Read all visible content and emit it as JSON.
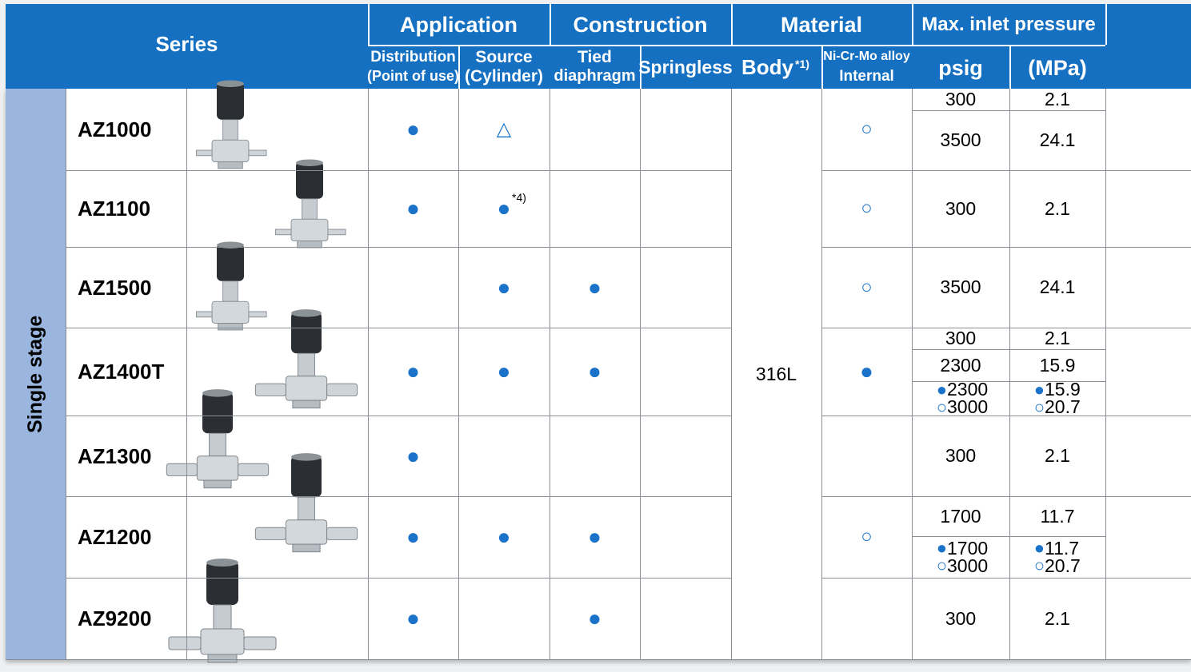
{
  "header": {
    "series": "Series",
    "application": "Application",
    "construction": "Construction",
    "material": "Material",
    "max_inlet_pressure": "Max. inlet pressure",
    "distribution": "Distribution",
    "distribution_note": "(Point of use)",
    "source": "Source",
    "source_note": "(Cylinder)",
    "tied": "Tied",
    "tied_note": "diaphragm",
    "springless": "Springless",
    "body": "Body",
    "body_footnote": "*1)",
    "alloy": "Ni-Cr-Mo alloy",
    "alloy_note": "Internal",
    "psig": "psig",
    "mpa": "(MPa)"
  },
  "group": "Single stage",
  "body_material": "316L",
  "rows": [
    {
      "model": "AZ1000",
      "distribution": "●",
      "source": "△",
      "internal": "○",
      "pressure": [
        {
          "psig": 300,
          "mpa": 2.1
        },
        {
          "psig": 3500,
          "mpa": 24.1
        }
      ]
    },
    {
      "model": "AZ1100",
      "distribution": "●",
      "source": "●",
      "source_footnote": "*4)",
      "internal": "○",
      "pressure": [
        {
          "psig": 300,
          "mpa": 2.1
        }
      ]
    },
    {
      "model": "AZ1500",
      "source": "●",
      "tied": "●",
      "internal": "○",
      "pressure": [
        {
          "psig": 3500,
          "mpa": 24.1
        }
      ]
    },
    {
      "model": "AZ1400T",
      "distribution": "●",
      "source": "●",
      "tied": "●",
      "internal": "●",
      "pressure": [
        {
          "psig": 300,
          "mpa": 2.1
        },
        {
          "psig": 2300,
          "mpa": 15.9
        },
        {
          "psig": [
            {
              "mark": "●",
              "value": 2300
            },
            {
              "mark": "○",
              "value": 3000
            }
          ],
          "mpa": [
            {
              "mark": "●",
              "value": 15.9
            },
            {
              "mark": "○",
              "value": 20.7
            }
          ]
        }
      ]
    },
    {
      "model": "AZ1300",
      "distribution": "●",
      "pressure": [
        {
          "psig": 300,
          "mpa": 2.1
        }
      ]
    },
    {
      "model": "AZ1200",
      "distribution": "●",
      "source": "●",
      "tied": "●",
      "internal": "○",
      "pressure": [
        {
          "psig": 1700,
          "mpa": 11.7
        },
        {
          "psig": [
            {
              "mark": "●",
              "value": 1700
            },
            {
              "mark": "○",
              "value": 3000
            }
          ],
          "mpa": [
            {
              "mark": "●",
              "value": 11.7
            },
            {
              "mark": "○",
              "value": 20.7
            }
          ]
        }
      ]
    },
    {
      "model": "AZ9200",
      "distribution": "●",
      "tied": "●",
      "pressure": [
        {
          "psig": 300,
          "mpa": 2.1
        }
      ]
    }
  ]
}
